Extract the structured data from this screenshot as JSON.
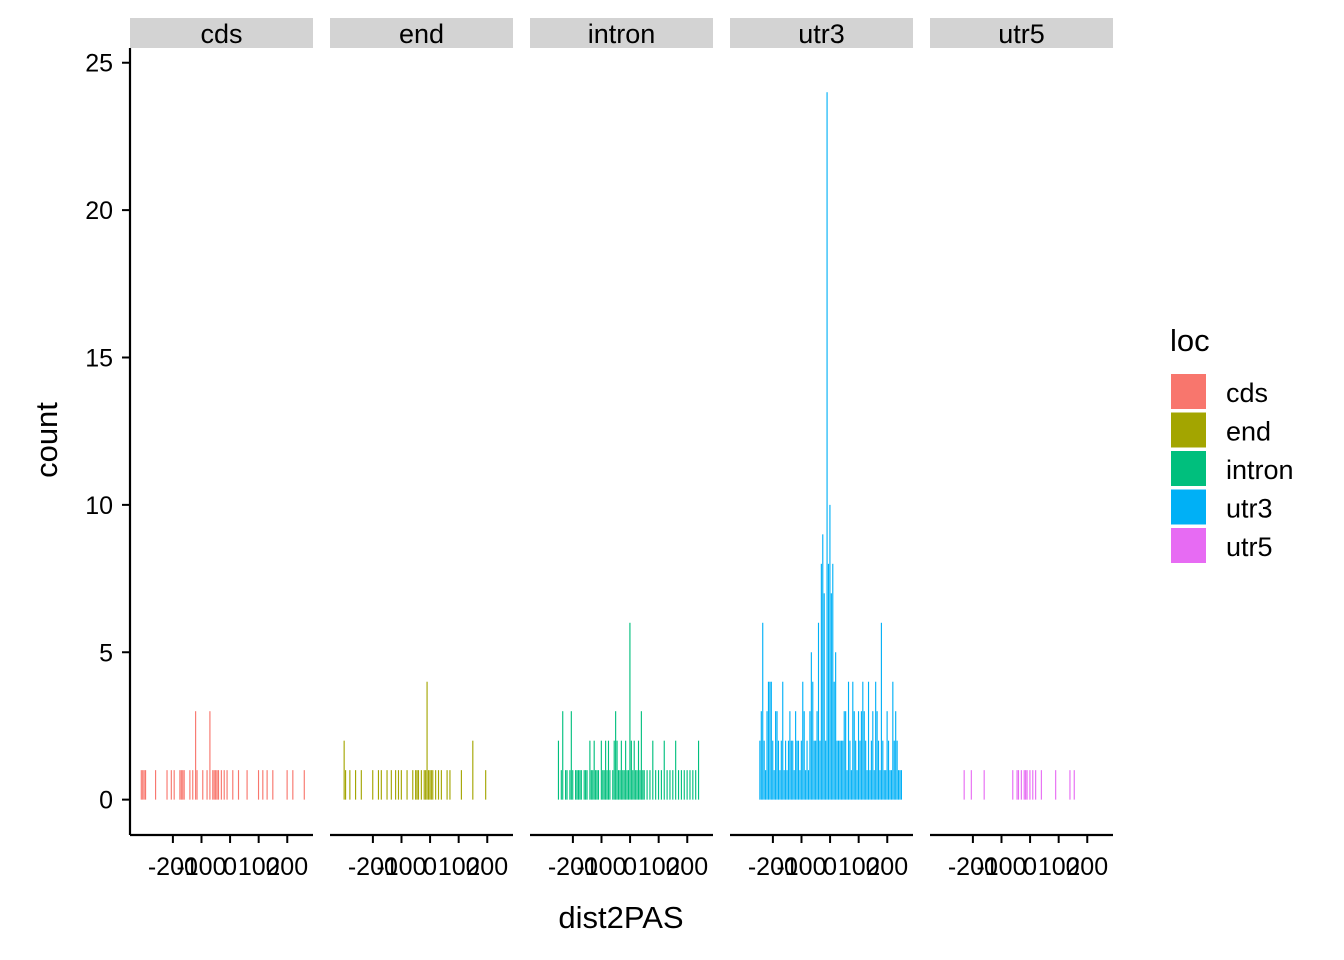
{
  "chart_data": {
    "type": "bar",
    "xlabel": "dist2PAS",
    "ylabel": "count",
    "ylim": [
      -1.2,
      25.5
    ],
    "y_ticks": [
      0,
      5,
      10,
      15,
      20,
      25
    ],
    "xlim": [
      -350,
      290
    ],
    "x_ticks": [
      -200,
      -100,
      0,
      100,
      200
    ],
    "x_tick_labels": [
      "-200",
      "-100",
      "0",
      "100",
      "200"
    ],
    "bin_width": 5,
    "legend": {
      "title": "loc",
      "position": "right",
      "entries": [
        "cds",
        "end",
        "intron",
        "utr3",
        "utr5"
      ]
    },
    "colors": {
      "cds": "#F8766D",
      "end": "#A3A500",
      "intron": "#00BF7D",
      "utr3": "#00B0F6",
      "utr5": "#E76BF3",
      "strip": "#D3D3D3"
    },
    "panels": [
      {
        "label": "cds",
        "x": [
          -310,
          -305,
          -300,
          -295,
          -260,
          -220,
          -205,
          -195,
          -175,
          -170,
          -165,
          -160,
          -140,
          -130,
          -120,
          -115,
          -95,
          -80,
          -70,
          -60,
          -55,
          -50,
          -45,
          -40,
          -30,
          -20,
          -10,
          10,
          30,
          60,
          100,
          115,
          130,
          150,
          200,
          220,
          260
        ],
        "y": [
          1,
          1,
          1,
          1,
          1,
          1,
          1,
          1,
          1,
          1,
          1,
          1,
          1,
          1,
          3,
          1,
          1,
          1,
          3,
          1,
          1,
          1,
          1,
          1,
          1,
          1,
          1,
          1,
          1,
          1,
          1,
          1,
          1,
          1,
          1,
          1,
          1
        ]
      },
      {
        "label": "end",
        "x": [
          -300,
          -295,
          -280,
          -260,
          -240,
          -200,
          -180,
          -170,
          -150,
          -135,
          -120,
          -110,
          -100,
          -80,
          -60,
          -50,
          -45,
          -40,
          -30,
          -20,
          -15,
          -10,
          -5,
          0,
          5,
          10,
          20,
          30,
          40,
          60,
          70,
          110,
          150,
          195
        ],
        "y": [
          2,
          1,
          1,
          1,
          1,
          1,
          1,
          1,
          1,
          1,
          1,
          1,
          1,
          1,
          1,
          1,
          1,
          1,
          1,
          1,
          1,
          4,
          1,
          1,
          1,
          1,
          1,
          1,
          1,
          1,
          1,
          1,
          2,
          1
        ]
      },
      {
        "label": "intron",
        "x": [
          -250,
          -240,
          -235,
          -225,
          -220,
          -210,
          -205,
          -200,
          -190,
          -185,
          -180,
          -175,
          -170,
          -160,
          -155,
          -150,
          -140,
          -135,
          -130,
          -125,
          -120,
          -115,
          -110,
          -100,
          -95,
          -90,
          -85,
          -80,
          -75,
          -70,
          -60,
          -55,
          -50,
          -45,
          -40,
          -35,
          -30,
          -25,
          -20,
          -15,
          -10,
          -5,
          0,
          5,
          10,
          15,
          20,
          25,
          30,
          35,
          40,
          45,
          50,
          60,
          70,
          80,
          90,
          100,
          110,
          120,
          130,
          140,
          150,
          160,
          170,
          180,
          190,
          200,
          210,
          220,
          230,
          240
        ],
        "y": [
          2,
          1,
          3,
          1,
          1,
          1,
          3,
          1,
          1,
          1,
          1,
          1,
          1,
          1,
          1,
          1,
          2,
          1,
          1,
          2,
          1,
          1,
          1,
          2,
          1,
          1,
          2,
          1,
          2,
          1,
          1,
          2,
          3,
          2,
          1,
          1,
          2,
          1,
          1,
          2,
          1,
          1,
          6,
          2,
          1,
          2,
          1,
          1,
          2,
          1,
          3,
          1,
          1,
          1,
          1,
          2,
          1,
          1,
          1,
          2,
          1,
          1,
          1,
          2,
          1,
          1,
          1,
          1,
          1,
          1,
          1,
          2
        ]
      },
      {
        "label": "utr3",
        "x": [
          -245,
          -240,
          -235,
          -230,
          -225,
          -220,
          -215,
          -210,
          -205,
          -200,
          -195,
          -190,
          -185,
          -180,
          -175,
          -170,
          -165,
          -160,
          -155,
          -150,
          -145,
          -140,
          -135,
          -130,
          -125,
          -120,
          -115,
          -110,
          -105,
          -100,
          -95,
          -90,
          -85,
          -80,
          -75,
          -70,
          -65,
          -60,
          -55,
          -50,
          -45,
          -40,
          -35,
          -30,
          -25,
          -20,
          -15,
          -10,
          -5,
          0,
          5,
          10,
          15,
          20,
          25,
          30,
          35,
          40,
          45,
          50,
          55,
          60,
          65,
          70,
          75,
          80,
          85,
          90,
          95,
          100,
          105,
          110,
          115,
          120,
          125,
          130,
          135,
          140,
          145,
          150,
          155,
          160,
          165,
          170,
          175,
          180,
          185,
          190,
          195,
          200,
          205,
          210,
          215,
          220,
          225,
          230,
          235,
          240,
          245,
          250
        ],
        "y": [
          2,
          3,
          6,
          2,
          1,
          3,
          4,
          4,
          4,
          2,
          1,
          3,
          3,
          2,
          1,
          2,
          4,
          1,
          2,
          1,
          2,
          3,
          2,
          2,
          1,
          3,
          2,
          2,
          1,
          2,
          4,
          3,
          1,
          2,
          1,
          3,
          5,
          4,
          2,
          2,
          3,
          6,
          2,
          8,
          9,
          7,
          2,
          24,
          8,
          10,
          7,
          8,
          4,
          5,
          2,
          2,
          2,
          2,
          2,
          3,
          3,
          1,
          4,
          2,
          1,
          4,
          3,
          2,
          1,
          3,
          2,
          3,
          4,
          3,
          2,
          1,
          4,
          1,
          2,
          3,
          1,
          4,
          3,
          2,
          1,
          6,
          2,
          1,
          1,
          3,
          2,
          1,
          1,
          4,
          2,
          3,
          2,
          1,
          1,
          1
        ]
      },
      {
        "label": "utr5",
        "x": [
          -230,
          -205,
          -160,
          -60,
          -45,
          -40,
          -30,
          -20,
          -15,
          -10,
          0,
          10,
          20,
          40,
          90,
          140,
          155
        ],
        "y": [
          1,
          1,
          1,
          1,
          1,
          1,
          1,
          1,
          1,
          1,
          1,
          1,
          1,
          1,
          1,
          1,
          1
        ]
      }
    ]
  }
}
